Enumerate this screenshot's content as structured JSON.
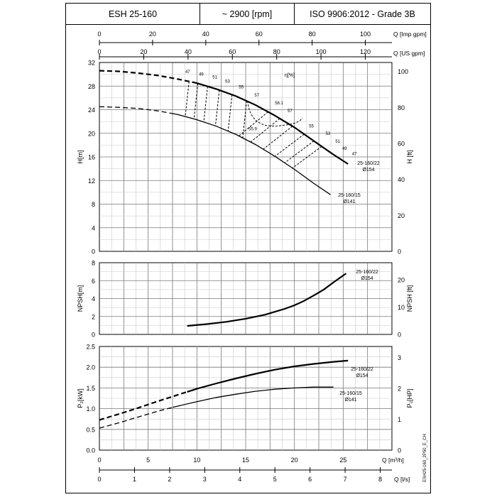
{
  "header": {
    "model": "ESH 25-160",
    "speed": "~ 2900 [rpm]",
    "standard": "ISO 9906:2012 - Grade 3B"
  },
  "flow_axes": {
    "imp_gpm": {
      "label": "Q [Imp gpm]",
      "ticks": [
        "0",
        "20",
        "40",
        "60",
        "80",
        "100"
      ]
    },
    "us_gpm": {
      "label": "Q [US gpm]",
      "ticks": [
        "0",
        "20",
        "40",
        "60",
        "80",
        "100",
        "120"
      ]
    },
    "m3h": {
      "label": "Q [m³/h]",
      "ticks": [
        "0",
        "5",
        "10",
        "15",
        "20",
        "25"
      ]
    },
    "ls": {
      "label": "Q [l/s]",
      "ticks": [
        "0",
        "1",
        "2",
        "3",
        "4",
        "5",
        "6",
        "7",
        "8"
      ]
    }
  },
  "side_code": "ESH25-160_2P50_E_CH",
  "chart_data": [
    {
      "type": "line",
      "panel": "head",
      "xlabel": "Q [m³/h]",
      "ylabel": "H[m]",
      "ylabel_right": "H [ft]",
      "ylim": [
        0,
        32
      ],
      "yticks": [
        "0",
        "4",
        "8",
        "12",
        "16",
        "20",
        "24",
        "28",
        "32"
      ],
      "yticks_right": [
        "0",
        "20",
        "40",
        "60",
        "80",
        "100"
      ],
      "xlim": [
        0,
        30
      ],
      "grid": true,
      "series": [
        {
          "name": "25-160/22 Ø154",
          "x": [
            0,
            2,
            4,
            6,
            8,
            10,
            12,
            14,
            16,
            18,
            20,
            22,
            24,
            25.5
          ],
          "y": [
            30.6,
            30.5,
            30.2,
            29.8,
            29.2,
            28.5,
            27.5,
            26.3,
            24.8,
            23.0,
            21.0,
            18.7,
            16.4,
            14.8
          ]
        },
        {
          "name": "25-160/15 Ø141",
          "x": [
            0,
            2,
            4,
            6,
            8,
            10,
            12,
            14,
            16,
            18,
            20,
            22,
            23.7
          ],
          "y": [
            24.5,
            24.4,
            24.2,
            23.8,
            23.2,
            22.3,
            21.2,
            19.8,
            18.1,
            16.1,
            13.9,
            11.5,
            9.6
          ]
        }
      ],
      "efficiency_label": "η[%]",
      "efficiency_labels_top": [
        "47",
        "49",
        "51",
        "53",
        "55",
        "57",
        "58.1",
        "57",
        "55",
        "53",
        "51",
        "49",
        "47"
      ],
      "efficiency_label_bottom": "55.9"
    },
    {
      "type": "line",
      "panel": "npsh",
      "ylabel": "NPSH[m]",
      "ylabel_right": "NPSH [ft]",
      "ylim": [
        0,
        8
      ],
      "yticks": [
        "0",
        "2",
        "4",
        "6",
        "8"
      ],
      "yticks_right": [
        "0",
        "10",
        "20"
      ],
      "xlim": [
        0,
        30
      ],
      "grid": true,
      "series": [
        {
          "name": "25-160/22 Ø154",
          "x": [
            9,
            11,
            13,
            15,
            17,
            19,
            20,
            21,
            22,
            23,
            24,
            25.3
          ],
          "y": [
            0.95,
            1.15,
            1.4,
            1.75,
            2.2,
            2.85,
            3.25,
            3.75,
            4.35,
            5.0,
            5.8,
            6.8
          ]
        }
      ]
    },
    {
      "type": "line",
      "panel": "power",
      "ylabel": "P₂[kW]",
      "ylabel_right": "P₂[HP]",
      "ylim": [
        0,
        2.5
      ],
      "yticks": [
        "0.0",
        "0.5",
        "1.0",
        "1.5",
        "2.0",
        "2.5"
      ],
      "yticks_right": [
        "0",
        "1",
        "2",
        "3"
      ],
      "xlim": [
        0,
        30
      ],
      "grid": true,
      "series": [
        {
          "name": "25-160/22 Ø154",
          "x": [
            0,
            2,
            4,
            6,
            8,
            10,
            12,
            14,
            16,
            18,
            20,
            22,
            24,
            25.5
          ],
          "y": [
            0.73,
            0.87,
            1.02,
            1.18,
            1.33,
            1.48,
            1.61,
            1.73,
            1.84,
            1.94,
            2.02,
            2.08,
            2.13,
            2.16
          ]
        },
        {
          "name": "25-160/15 Ø141",
          "x": [
            0,
            2,
            4,
            6,
            8,
            10,
            12,
            14,
            16,
            18,
            20,
            22,
            24
          ],
          "y": [
            0.53,
            0.66,
            0.8,
            0.94,
            1.06,
            1.17,
            1.27,
            1.35,
            1.42,
            1.47,
            1.5,
            1.52,
            1.52
          ]
        }
      ]
    }
  ]
}
